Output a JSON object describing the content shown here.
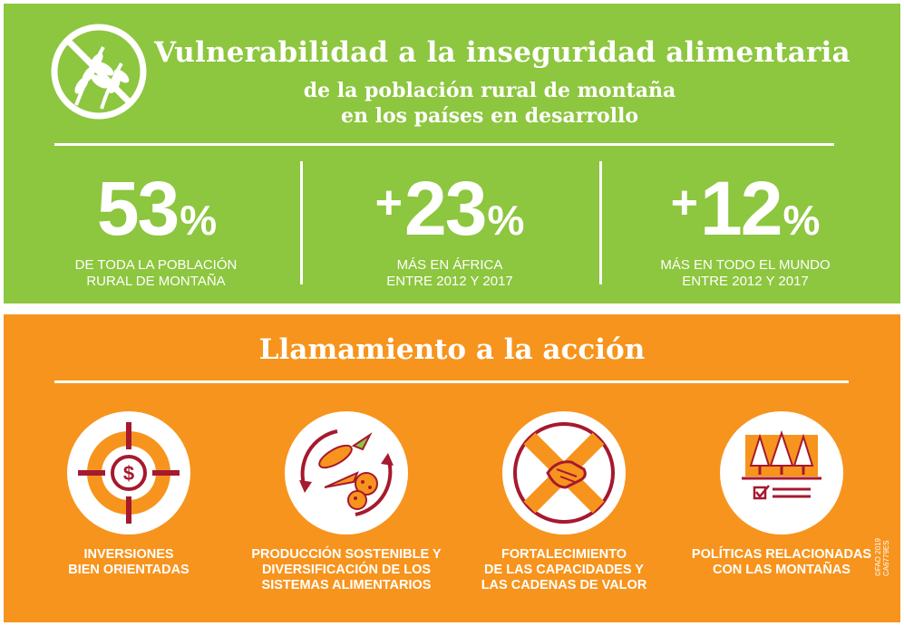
{
  "header": {
    "title": "Vulnerabilidad a la inseguridad alimentaria",
    "subtitle_line1": "de la población rural de montaña",
    "subtitle_line2": "en los países en desarrollo"
  },
  "stats": [
    {
      "prefix": "",
      "number": "53",
      "unit": "%",
      "caption": "DE TODA LA POBLACIÓN\nRURAL DE MONTAÑA"
    },
    {
      "prefix": "+",
      "number": "23",
      "unit": "%",
      "caption": "MÁS EN ÁFRICA\nENTRE 2012 Y 2017"
    },
    {
      "prefix": "+",
      "number": "12",
      "unit": "%",
      "caption": "MÁS EN TODO EL MUNDO\nENTRE 2012 Y 2017"
    }
  ],
  "call_to_action": {
    "title": "Llamamiento a la acción",
    "items": [
      {
        "icon": "target-dollar-icon",
        "label": "INVERSIONES\nBIEN ORIENTADAS"
      },
      {
        "icon": "food-cycle-icon",
        "label": "PRODUCCIÓN SOSTENIBLE Y\nDIVERSIFICACIÓN DE LOS\nSISTEMAS ALIMENTARIOS"
      },
      {
        "icon": "handshake-icon",
        "label": "FORTALECIMIENTO\nDE LAS CAPACIDADES Y\nLAS CADENAS DE VALOR"
      },
      {
        "icon": "mountain-policy-icon",
        "label": "POLÍTICAS RELACIONADAS\nCON LAS MONTAÑAS"
      }
    ]
  },
  "credit": "©FAO 2019\nCA6779ES",
  "colors": {
    "green": "#8dc63f",
    "orange": "#f7941d",
    "dark_red": "#a6192e"
  }
}
